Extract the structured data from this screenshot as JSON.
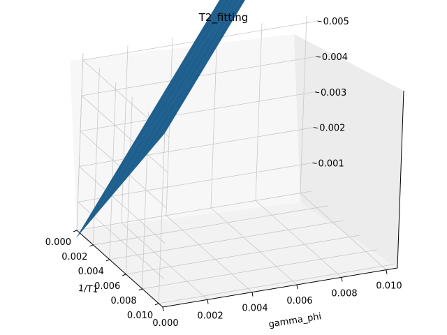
{
  "figure": {
    "title": "T2_fitting"
  },
  "chart_data": {
    "type": "surface3d",
    "title": "T2_fitting",
    "xlabel": "gamma_phi",
    "ylabel": "1/T1",
    "zlabel": "",
    "x_ticks": [
      "0.000",
      "0.002",
      "0.004",
      "0.006",
      "0.008",
      "0.010"
    ],
    "y_ticks": [
      "0.000",
      "0.002",
      "0.004",
      "0.006",
      "0.008",
      "0.010"
    ],
    "z_ticks": [
      "0.001",
      "0.002",
      "0.003",
      "0.004",
      "0.005"
    ],
    "xlim": [
      0,
      0.0105
    ],
    "ylim": [
      0,
      0.0105
    ],
    "zlim": [
      0.0002,
      0.0052
    ],
    "surface": {
      "formula": "z = gamma_phi + (1/T1)/2",
      "grid_x": [
        0,
        0.002,
        0.004,
        0.006,
        0.008,
        0.01
      ],
      "grid_y": [
        0,
        0.002,
        0.004,
        0.006,
        0.008,
        0.01
      ],
      "color": "#1f5f8e"
    },
    "grid": true,
    "pane_color": "#f2f2f2",
    "grid_color": "#c8c8c8"
  }
}
